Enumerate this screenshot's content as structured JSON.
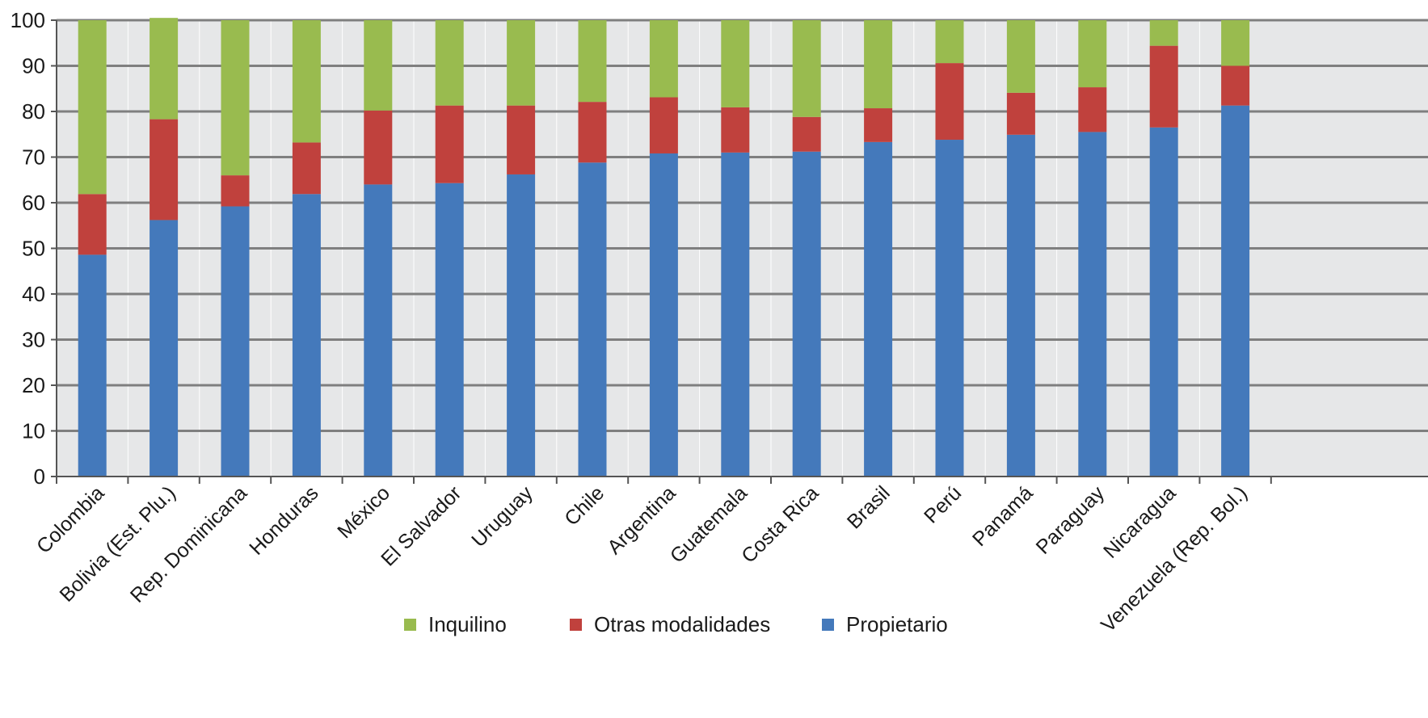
{
  "chart_data": {
    "type": "bar",
    "stacked": true,
    "ylim": [
      0,
      100
    ],
    "yticks": [
      0,
      10,
      20,
      30,
      40,
      50,
      60,
      70,
      80,
      90,
      100
    ],
    "grid": true,
    "legend_position": "bottom",
    "categories": [
      "Colombia",
      "Bolivia (Est. Plu.)",
      "Rep. Dominicana",
      "Honduras",
      "México",
      "El Salvador",
      "Uruguay",
      "Chile",
      "Argentina",
      "Guatemala",
      "Costa Rica",
      "Brasil",
      "Perú",
      "Panamá",
      "Paraguay",
      "Nicaragua",
      "Venezuela (Rep. Bol.)"
    ],
    "series": [
      {
        "name": "Propietario",
        "color": "#4479bb",
        "values": [
          48.6,
          56.2,
          59.2,
          61.9,
          64.0,
          64.3,
          66.2,
          68.8,
          70.8,
          71.0,
          71.2,
          73.3,
          73.8,
          74.9,
          75.5,
          76.5,
          81.3
        ]
      },
      {
        "name": "Otras modalidades",
        "color": "#c0413d",
        "values": [
          13.3,
          22.1,
          6.8,
          11.3,
          16.2,
          17.0,
          15.1,
          13.3,
          12.3,
          9.9,
          7.6,
          7.4,
          16.8,
          9.2,
          9.8,
          17.9,
          8.7
        ]
      },
      {
        "name": "Inquilino",
        "color": "#99bb4f",
        "values": [
          38.1,
          22.2,
          34.0,
          26.8,
          19.8,
          18.7,
          18.7,
          17.9,
          16.9,
          19.1,
          21.2,
          19.3,
          9.4,
          15.9,
          14.7,
          5.6,
          10.0
        ]
      }
    ],
    "legend_order": [
      "Inquilino",
      "Otras modalidades",
      "Propietario"
    ]
  }
}
